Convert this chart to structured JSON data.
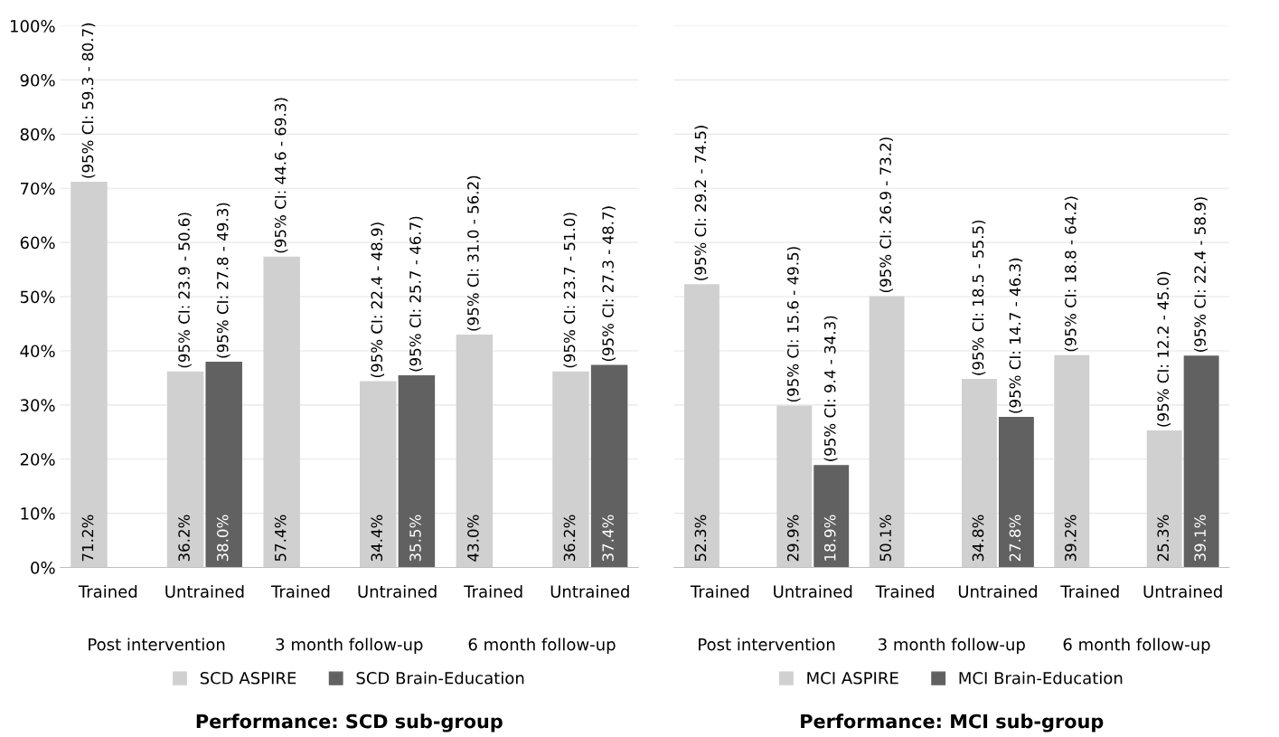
{
  "chart_data": [
    {
      "type": "bar",
      "title": "Performance: SCD sub-group",
      "categories": [
        "Trained",
        "Untrained",
        "Trained",
        "Untrained",
        "Trained",
        "Untrained"
      ],
      "series": [
        {
          "name": "SCD ASPIRE",
          "color": "#d0d0d0",
          "values": [
            71.2,
            36.2,
            57.4,
            34.4,
            43.0,
            36.2
          ],
          "value_labels": [
            "71.2%",
            "36.2%",
            "57.4%",
            "34.4%",
            "43.0%",
            "36.2%"
          ]
        },
        {
          "name": "SCD Brain-Education",
          "color": "#616161",
          "values": [
            null,
            38.0,
            null,
            35.5,
            null,
            37.4
          ],
          "value_labels": [
            null,
            "38.0%",
            null,
            "35.5%",
            null,
            "37.4%"
          ]
        }
      ],
      "annotations": [
        "Post intervention",
        "3 month follow-up",
        "6 month follow-up",
        "(95% CI: 59.3 - 80.7)",
        "(95% CI: 23.9 - 50.6)",
        "(95% CI: 27.8 - 49.3)",
        "(95% CI: 44.6 - 69.3)",
        "(95% CI: 22.4 - 48.9)",
        "(95% CI: 25.7 - 46.7)",
        "(95% CI: 31.0 - 56.2)",
        "(95% CI: 23.7 - 51.0)",
        "(95% CI: 27.3 - 48.7)"
      ],
      "ylim": [
        0,
        100
      ],
      "yticks": [
        {
          "value": 0,
          "label": "0%"
        },
        {
          "value": 10,
          "label": "10%"
        },
        {
          "value": 20,
          "label": "20%"
        },
        {
          "value": 30,
          "label": "30%"
        },
        {
          "value": 40,
          "label": "40%"
        },
        {
          "value": 50,
          "label": "50%"
        },
        {
          "value": 60,
          "label": "60%"
        },
        {
          "value": 70,
          "label": "70%"
        },
        {
          "value": 80,
          "label": "80%"
        },
        {
          "value": 90,
          "label": "90%"
        },
        {
          "value": 100,
          "label": "100%"
        }
      ],
      "grid": "y",
      "legend": "bottom"
    },
    {
      "type": "bar",
      "title": "Performance: MCI sub-group",
      "categories": [
        "Trained",
        "Untrained",
        "Trained",
        "Untrained",
        "Trained",
        "Untrained"
      ],
      "series": [
        {
          "name": "MCI ASPIRE",
          "color": "#d0d0d0",
          "values": [
            52.3,
            29.9,
            50.1,
            34.8,
            39.2,
            25.3
          ],
          "value_labels": [
            "52.3%",
            "29.9%",
            "50.1%",
            "34.8%",
            "39.2%",
            "25.3%"
          ]
        },
        {
          "name": "MCI Brain-Education",
          "color": "#616161",
          "values": [
            null,
            18.9,
            null,
            27.8,
            null,
            39.1
          ],
          "value_labels": [
            null,
            "18.9%",
            null,
            "27.8%",
            null,
            "39.1%"
          ]
        }
      ],
      "annotations": [
        "Post intervention",
        "3 month follow-up",
        "6 month follow-up",
        "(95% CI: 29.2 - 74.5)",
        "(95% CI: 15.6 - 49.5)",
        "(95% CI: 9.4 - 34.3)",
        "(95% CI: 26.9 - 73.2)",
        "(95% CI: 18.5 - 55.5)",
        "(95% CI: 14.7 - 46.3)",
        "(95% CI: 18.8 - 64.2)",
        "(95% CI: 12.2 - 45.0)",
        "(95% CI: 22.4 - 58.9)"
      ],
      "ylim": [
        0,
        100
      ],
      "yticks": [
        {
          "value": 0,
          "label": null
        },
        {
          "value": 10,
          "label": null
        },
        {
          "value": 20,
          "label": null
        },
        {
          "value": 30,
          "label": null
        },
        {
          "value": 40,
          "label": null
        },
        {
          "value": 50,
          "label": null
        },
        {
          "value": 60,
          "label": null
        },
        {
          "value": 70,
          "label": null
        },
        {
          "value": 80,
          "label": null
        },
        {
          "value": 90,
          "label": null
        },
        {
          "value": 100,
          "label": null
        }
      ],
      "grid": "y",
      "legend": "bottom",
      "tick_labels": "x"
    }
  ]
}
